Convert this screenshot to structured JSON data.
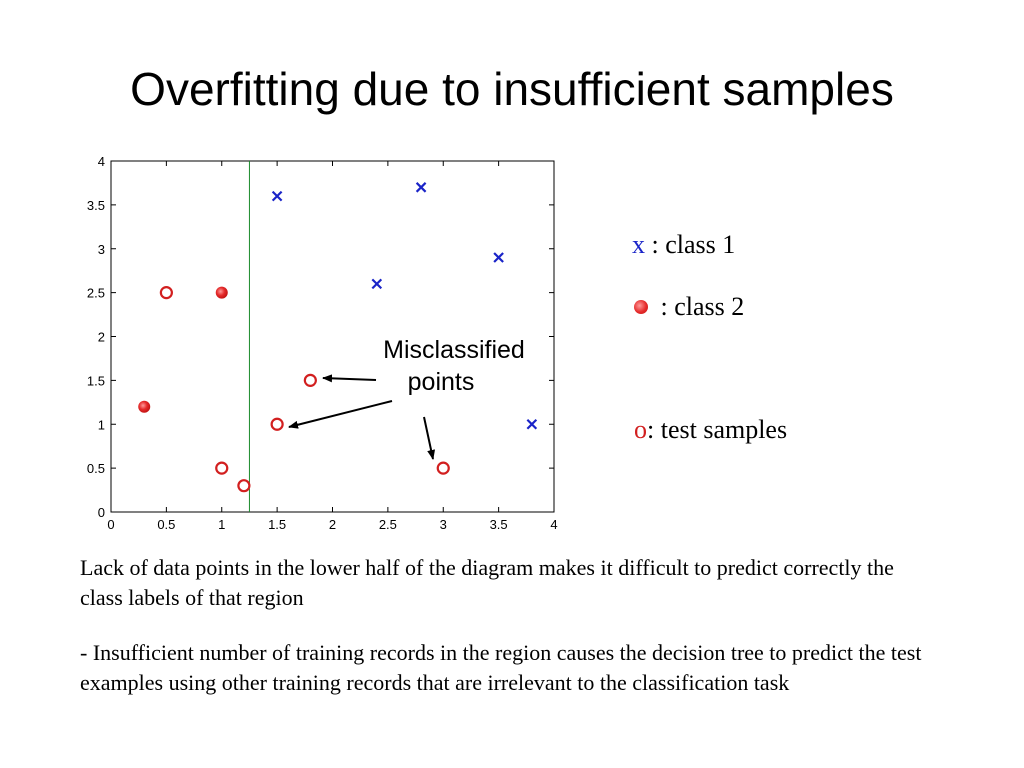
{
  "slide": {
    "title": "Overfitting due to insufficient samples",
    "paragraph1": "Lack of data points in the lower half of the diagram makes it difficult to predict correctly the class labels of that region",
    "paragraph2": "- Insufficient number of training records in the region causes the decision tree to predict the test examples using other training records that are irrelevant to the classification task"
  },
  "legend": {
    "class1_symbol": "x",
    "class1_label": " : class 1",
    "class2_label": " : class 2",
    "test_symbol": "o",
    "test_label": ": test samples"
  },
  "chart_data": {
    "type": "scatter",
    "xlim": [
      0,
      4
    ],
    "ylim": [
      0,
      4
    ],
    "xticks": [
      "0",
      "0.5",
      "1",
      "1.5",
      "2",
      "2.5",
      "3",
      "3.5",
      "4"
    ],
    "yticks": [
      "0",
      "0.5",
      "1",
      "1.5",
      "2",
      "2.5",
      "3",
      "3.5",
      "4"
    ],
    "grid": false,
    "decision_boundary_x": 1.25,
    "class1_points": [
      [
        1.5,
        3.6
      ],
      [
        2.8,
        3.7
      ],
      [
        2.4,
        2.6
      ],
      [
        3.5,
        2.9
      ],
      [
        3.8,
        1.0
      ]
    ],
    "class2_points": [
      [
        1.0,
        2.5
      ],
      [
        0.3,
        1.2
      ]
    ],
    "test_points": [
      [
        0.5,
        2.5
      ],
      [
        1.8,
        1.5
      ],
      [
        1.5,
        1.0
      ],
      [
        1.0,
        0.5
      ],
      [
        1.2,
        0.3
      ],
      [
        3.0,
        0.5
      ]
    ],
    "annotation": {
      "line1": "Misclassified",
      "line2": "points"
    },
    "colors": {
      "class1": "#1a24c8",
      "class2": "#e52b2b",
      "test": "#d21f1f",
      "boundary": "#1a8a2a"
    }
  }
}
